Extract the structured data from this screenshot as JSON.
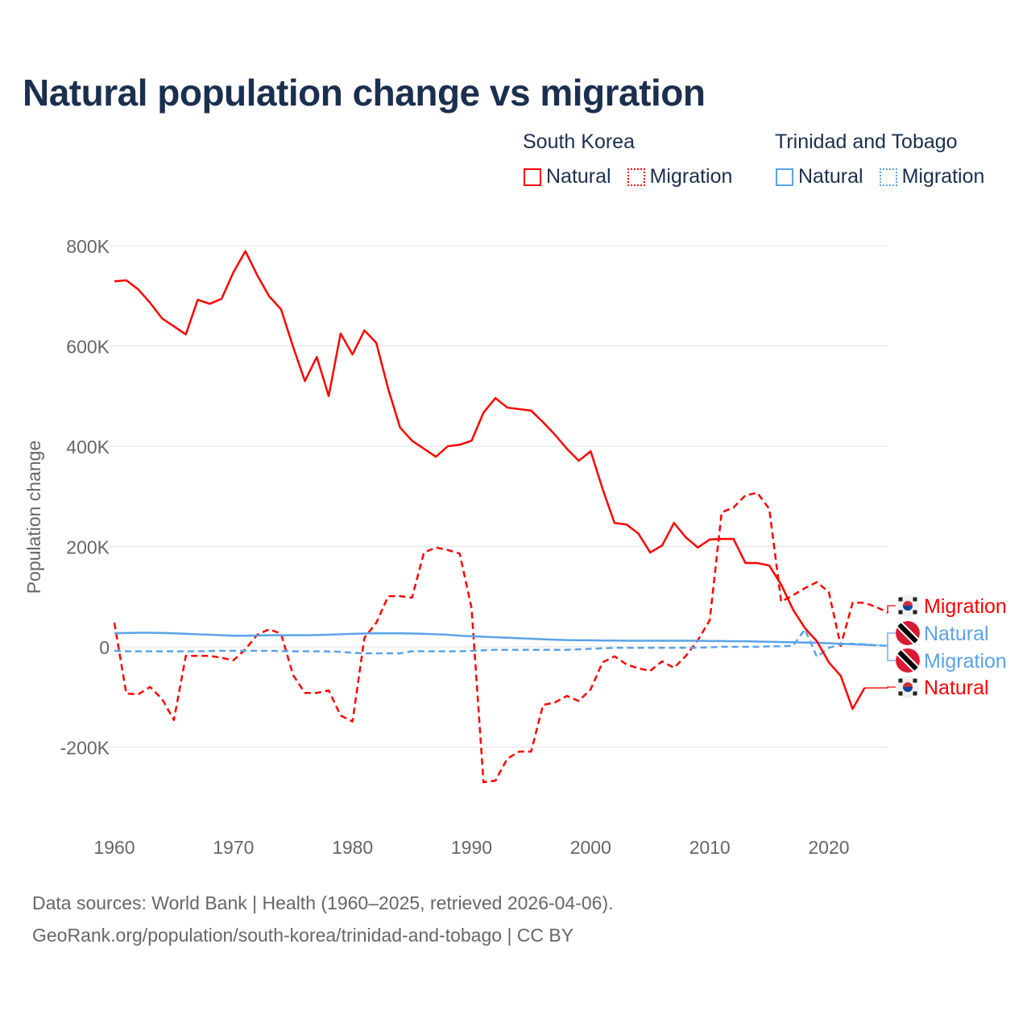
{
  "title": "Natural population change vs migration",
  "legend": {
    "groups": [
      {
        "name": "South Korea",
        "items": [
          "Natural",
          "Migration"
        ],
        "color": "#ff0000"
      },
      {
        "name": "Trinidad and Tobago",
        "items": [
          "Natural",
          "Migration"
        ],
        "color": "#5aa3e8"
      }
    ]
  },
  "footer": {
    "line1": "Data sources: World Bank | Health (1960–2025, retrieved 2026-04-06).",
    "line2": "GeoRank.org/population/south-korea/trinidad-and-tobago | CC BY"
  },
  "chart_data": {
    "type": "line",
    "title": "Natural population change vs migration",
    "xlabel": "",
    "ylabel": "Population change",
    "xlim": [
      1960,
      2025
    ],
    "ylim": [
      -300000,
      800000
    ],
    "x_ticks": [
      "1960",
      "1970",
      "1980",
      "1990",
      "2000",
      "2010",
      "2020"
    ],
    "y_ticks": [
      {
        "value": 800000,
        "label": "800K"
      },
      {
        "value": 600000,
        "label": "600K"
      },
      {
        "value": 400000,
        "label": "400K"
      },
      {
        "value": 200000,
        "label": "200K"
      },
      {
        "value": 0,
        "label": "0"
      },
      {
        "value": -200000,
        "label": "-200K"
      }
    ],
    "grid": true,
    "series": [
      {
        "name": "South Korea Natural",
        "label": "Natural",
        "flag": "south-korea",
        "color": "#ff0000",
        "dash": false,
        "start": 1960,
        "values": [
          729,
          731,
          713,
          686,
          655,
          639,
          623,
          692,
          684,
          694,
          747,
          789,
          741,
          699,
          673,
          599,
          530,
          578,
          500,
          625,
          583,
          631,
          606,
          514,
          437,
          411,
          395,
          379,
          400,
          403,
          411,
          467,
          496,
          477,
          474,
          471,
          448,
          423,
          395,
          371,
          390,
          315,
          247,
          244,
          226,
          188,
          202,
          247,
          218,
          198,
          214,
          215,
          215,
          167,
          167,
          162,
          124,
          74,
          37,
          11,
          -31,
          -58,
          -124,
          -82
        ]
      },
      {
        "name": "South Korea Migration",
        "label": "Migration",
        "flag": "south-korea",
        "color": "#ff0000",
        "dash": true,
        "start": 1960,
        "values": [
          48,
          -93,
          -95,
          -80,
          -104,
          -146,
          -18,
          -18,
          -18,
          -22,
          -27,
          -5,
          24,
          35,
          26,
          -56,
          -92,
          -92,
          -87,
          -137,
          -149,
          18,
          48,
          101,
          101,
          98,
          188,
          198,
          193,
          186,
          77,
          -270,
          -267,
          -223,
          -209,
          -209,
          -116,
          -111,
          -98,
          -108,
          -85,
          -31,
          -19,
          -35,
          -43,
          -48,
          -29,
          -42,
          -18,
          13,
          53,
          268,
          278,
          302,
          307,
          275,
          90,
          103,
          117,
          129,
          109,
          2,
          88,
          88,
          79,
          68
        ]
      },
      {
        "name": "Trinidad and Tobago Natural",
        "label": "Natural",
        "flag": "trinidad-and-tobago",
        "color": "#5aa3e8",
        "dash": false,
        "start": 1960,
        "values": [
          27,
          27.5,
          28,
          28,
          27.5,
          27,
          26,
          25,
          24,
          23,
          22,
          22,
          22.5,
          23,
          23,
          23,
          23,
          23.5,
          24,
          25,
          26,
          26.5,
          27,
          27,
          27,
          26.5,
          26,
          25,
          24,
          22,
          21,
          20,
          19,
          18,
          17,
          16,
          15,
          14,
          13.5,
          13,
          13,
          12.5,
          12.5,
          12,
          12,
          12,
          12,
          12,
          12,
          12,
          11.5,
          11.5,
          11,
          11,
          10.5,
          10,
          9.5,
          9,
          8.5,
          8,
          7,
          6,
          5,
          4,
          3
        ]
      },
      {
        "name": "Trinidad and Tobago Migration",
        "label": "Migration",
        "flag": "trinidad-and-tobago",
        "color": "#5aa3e8",
        "dash": true,
        "start": 1960,
        "values": [
          -8,
          -9,
          -9,
          -9,
          -9,
          -9,
          -9,
          -9,
          -8.5,
          -8,
          -8,
          -8,
          -8,
          -8,
          -8.5,
          -9,
          -9,
          -9,
          -9.5,
          -10,
          -12,
          -13,
          -13,
          -13,
          -13,
          -9,
          -9,
          -9,
          -9,
          -9,
          -8,
          -7,
          -6,
          -6,
          -6,
          -6,
          -6,
          -6,
          -6,
          -5,
          -4,
          -3,
          -2,
          -2,
          -2,
          -2,
          -2,
          -2,
          -2,
          -2,
          -1,
          0,
          0,
          0,
          0,
          1,
          1,
          2,
          35,
          -20,
          -2,
          5,
          6,
          5,
          3,
          2
        ]
      }
    ]
  }
}
